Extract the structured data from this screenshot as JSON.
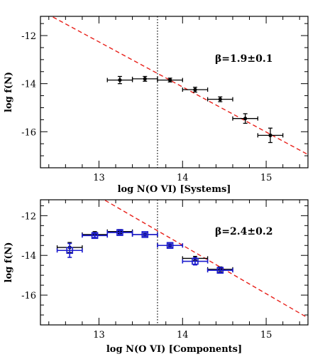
{
  "chart_data": [
    {
      "type": "scatter",
      "xlabel": "log N(O VI) [Systems]",
      "ylabel": "log f(N)",
      "xlim": [
        12.3,
        15.5
      ],
      "ylim": [
        -17.5,
        -11.2
      ],
      "xticks": [
        13,
        14,
        15
      ],
      "yticks": [
        -12,
        -14,
        -16
      ],
      "xtick_labels": [
        "13",
        "14",
        "15"
      ],
      "ytick_labels": [
        "-12",
        "-14",
        "-16"
      ],
      "annotation": "β=1.9±0.1",
      "vline_x": 13.7,
      "fit_line": {
        "x": [
          12.3,
          15.5
        ],
        "y": [
          -10.95,
          -16.95
        ],
        "color": "#e8201a",
        "style": "dashed"
      },
      "series": [
        {
          "color": "#000000",
          "marker": "filled-circle",
          "points": [
            {
              "x": 13.25,
              "y": -13.85,
              "xerr": 0.15,
              "yerr": 0.15
            },
            {
              "x": 13.55,
              "y": -13.8,
              "xerr": 0.15,
              "yerr": 0.1
            },
            {
              "x": 13.85,
              "y": -13.85,
              "xerr": 0.15,
              "yerr": 0.08
            },
            {
              "x": 14.15,
              "y": -14.25,
              "xerr": 0.15,
              "yerr": 0.1
            },
            {
              "x": 14.45,
              "y": -14.65,
              "xerr": 0.15,
              "yerr": 0.1
            },
            {
              "x": 14.75,
              "y": -15.45,
              "xerr": 0.15,
              "yerr": 0.2
            },
            {
              "x": 15.05,
              "y": -16.15,
              "xerr": 0.15,
              "yerr": 0.3
            }
          ]
        }
      ]
    },
    {
      "type": "scatter",
      "xlabel": "log N(O VI) [Components]",
      "ylabel": "log f(N)",
      "xlim": [
        12.3,
        15.5
      ],
      "ylim": [
        -17.5,
        -11.2
      ],
      "xticks": [
        13,
        14,
        15
      ],
      "yticks": [
        -12,
        -14,
        -16
      ],
      "xtick_labels": [
        "13",
        "14",
        "15"
      ],
      "ytick_labels": [
        "-12",
        "-14",
        "-16"
      ],
      "annotation": "β=2.4±0.2",
      "vline_x": 13.7,
      "fit_line": {
        "x": [
          13.0,
          15.5
        ],
        "y": [
          -11.05,
          -17.15
        ],
        "color": "#e8201a",
        "style": "dashed"
      },
      "series": [
        {
          "color": "#000000",
          "marker": "filled-circle",
          "points": [
            {
              "x": 12.65,
              "y": -13.6,
              "xerr": 0.15,
              "yerr": 0.25
            },
            {
              "x": 12.95,
              "y": -12.95,
              "xerr": 0.15,
              "yerr": 0.15
            },
            {
              "x": 13.25,
              "y": -12.8,
              "xerr": 0.15,
              "yerr": 0.1
            },
            {
              "x": 13.55,
              "y": -12.95,
              "xerr": 0.15,
              "yerr": 0.08
            },
            {
              "x": 13.85,
              "y": -13.5,
              "xerr": 0.15,
              "yerr": 0.08
            },
            {
              "x": 14.15,
              "y": -14.15,
              "xerr": 0.15,
              "yerr": 0.1
            },
            {
              "x": 14.45,
              "y": -14.7,
              "xerr": 0.15,
              "yerr": 0.12
            }
          ]
        },
        {
          "color": "#1a1acc",
          "marker": "open-square",
          "points": [
            {
              "x": 12.65,
              "y": -13.75,
              "xerr": 0.15,
              "yerr": 0.35
            },
            {
              "x": 12.95,
              "y": -13.0,
              "xerr": 0.15,
              "yerr": 0.1
            },
            {
              "x": 13.25,
              "y": -12.85,
              "xerr": 0.15,
              "yerr": 0.1
            },
            {
              "x": 13.55,
              "y": -12.95,
              "xerr": 0.15,
              "yerr": 0.08
            },
            {
              "x": 13.85,
              "y": -13.5,
              "xerr": 0.15,
              "yerr": 0.08
            },
            {
              "x": 14.15,
              "y": -14.3,
              "xerr": 0.15,
              "yerr": 0.18
            },
            {
              "x": 14.45,
              "y": -14.75,
              "xerr": 0.15,
              "yerr": 0.12
            }
          ]
        }
      ]
    }
  ]
}
